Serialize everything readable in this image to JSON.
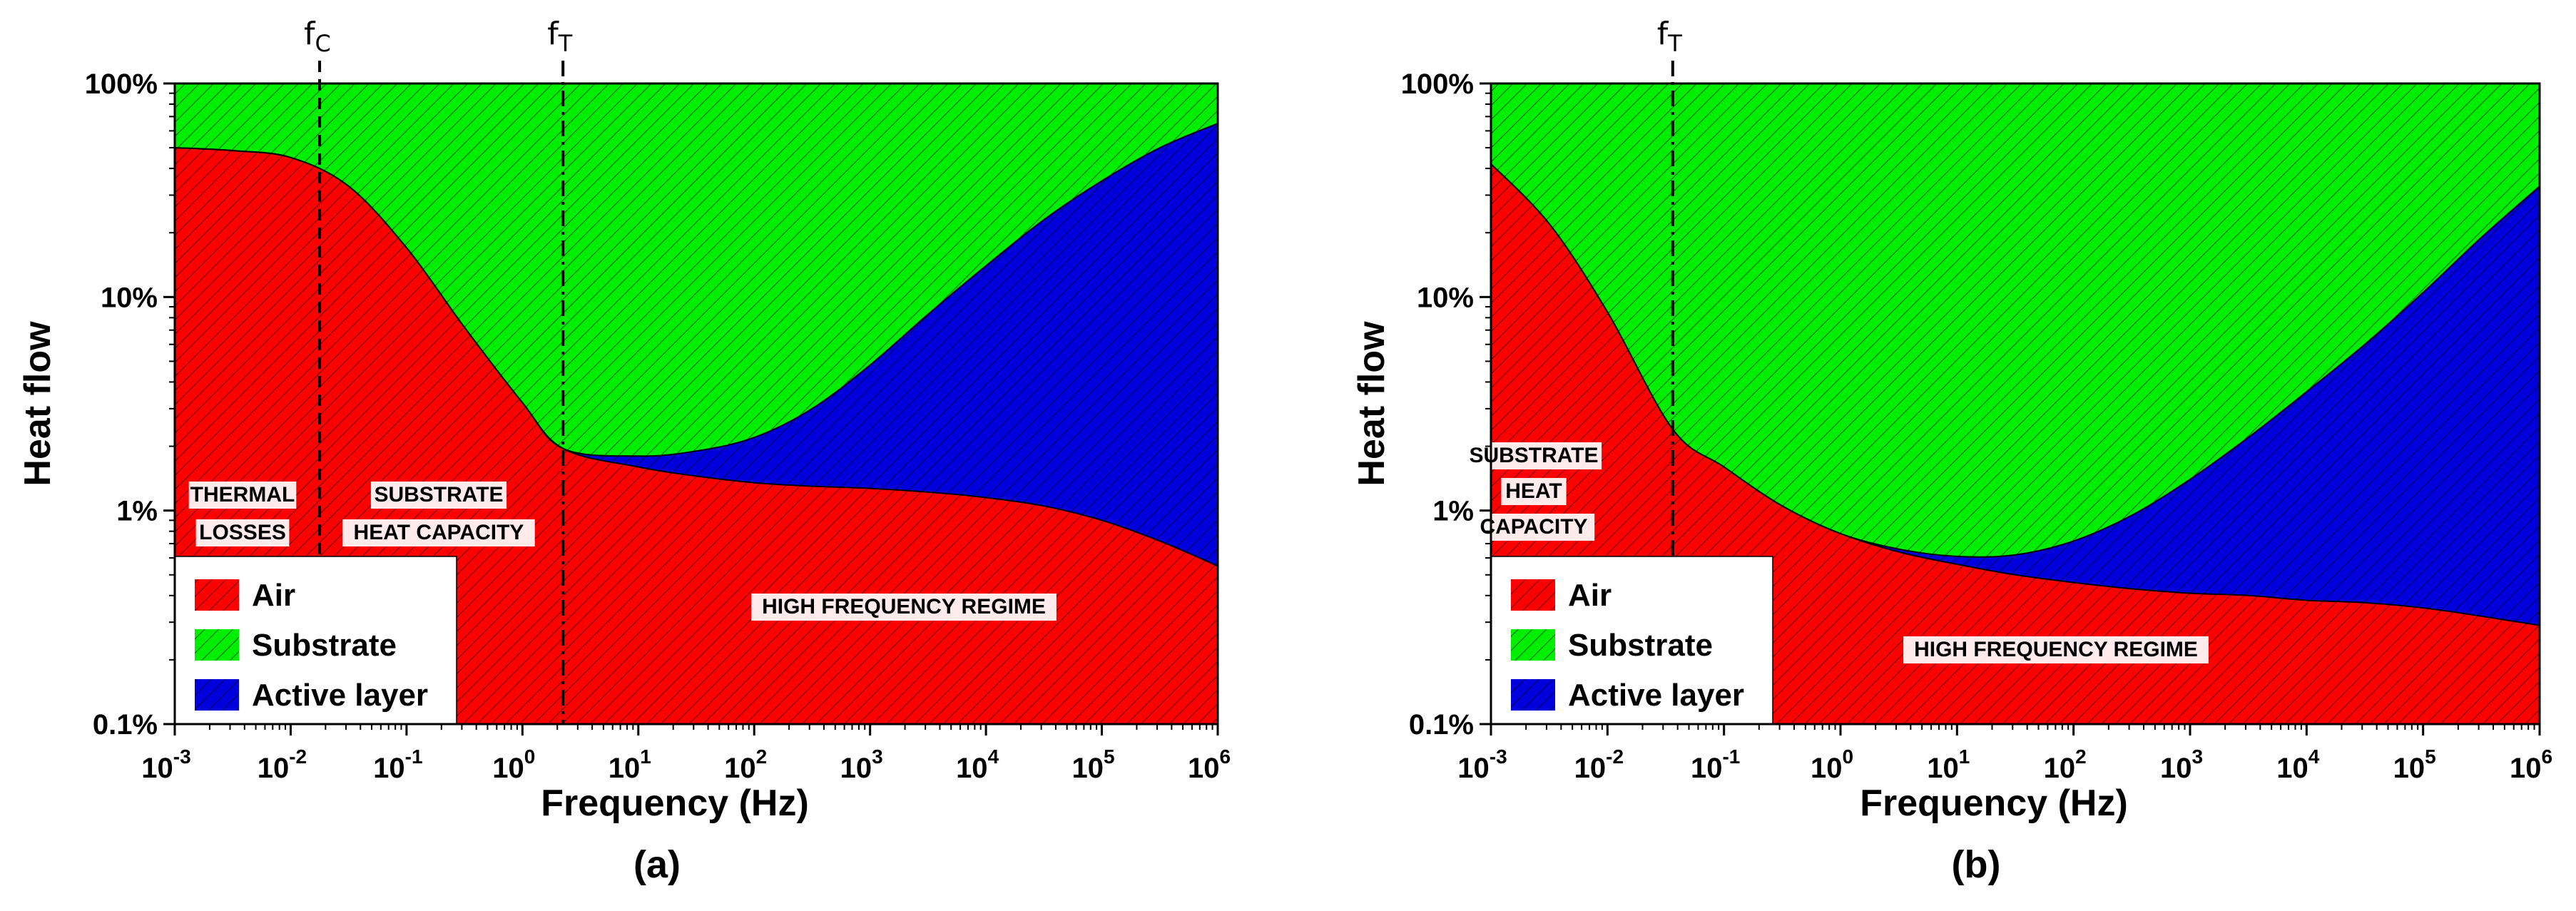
{
  "colors": {
    "air": "#ff0000",
    "substrate": "#00ee00",
    "active": "#0000dd",
    "hatch": "#000000"
  },
  "chart_data": [
    {
      "type": "area",
      "panel_label": "(a)",
      "xlabel": "Frequency (Hz)",
      "ylabel": "Heat flow",
      "xscale": "log",
      "yscale": "log",
      "xlim": [
        0.001,
        1000000
      ],
      "ylim": [
        0.1,
        100
      ],
      "x_ticks": [
        {
          "exp": -3,
          "base": "10",
          "sup": "-3"
        },
        {
          "exp": -2,
          "base": "10",
          "sup": "-2"
        },
        {
          "exp": -1,
          "base": "10",
          "sup": "-1"
        },
        {
          "exp": 0,
          "base": "10",
          "sup": "0"
        },
        {
          "exp": 1,
          "base": "10",
          "sup": "1"
        },
        {
          "exp": 2,
          "base": "10",
          "sup": "2"
        },
        {
          "exp": 3,
          "base": "10",
          "sup": "3"
        },
        {
          "exp": 4,
          "base": "10",
          "sup": "4"
        },
        {
          "exp": 5,
          "base": "10",
          "sup": "5"
        },
        {
          "exp": 6,
          "base": "10",
          "sup": "6"
        }
      ],
      "y_ticks": [
        {
          "value": 100,
          "label": "100%"
        },
        {
          "value": 10,
          "label": "10%"
        },
        {
          "value": 1,
          "label": "1%"
        },
        {
          "value": 0.1,
          "label": "0.1%"
        }
      ],
      "x_log": [
        -3,
        -2.5,
        -2,
        -1.5,
        -1,
        -0.5,
        0,
        0.35,
        1,
        1.5,
        2,
        2.5,
        3,
        3.5,
        4,
        4.5,
        5,
        5.5,
        6
      ],
      "series": [
        {
          "name": "Air",
          "key": "air",
          "upper": [
            50,
            48.5,
            45,
            33,
            17,
            7.2,
            3.2,
            1.95,
            1.6,
            1.45,
            1.35,
            1.3,
            1.27,
            1.22,
            1.15,
            1.05,
            0.9,
            0.72,
            0.55
          ]
        },
        {
          "name": "Active layer",
          "key": "active",
          "upper": [
            50,
            48.5,
            45,
            33,
            17,
            7.2,
            3.2,
            1.95,
            1.8,
            1.9,
            2.2,
            3.0,
            4.8,
            8.3,
            14,
            23,
            35,
            50,
            65
          ]
        },
        {
          "name": "Substrate",
          "key": "substrate",
          "upper_const": 100
        }
      ],
      "markers": [
        {
          "log_x": -1.75,
          "base": "f",
          "sub": "C",
          "style": "dashed"
        },
        {
          "log_x": 0.35,
          "base": "f",
          "sub": "T",
          "style": "dashdot"
        }
      ],
      "annotations": [
        {
          "lines": [
            "THERMAL",
            "LOSSES"
          ]
        },
        {
          "lines": [
            "SUBSTRATE",
            "HEAT CAPACITY"
          ]
        },
        {
          "lines": [
            "HIGH FREQUENCY REGIME"
          ]
        }
      ],
      "legend": {
        "placement": "bottom-left",
        "items": [
          {
            "label": "Air",
            "key": "air"
          },
          {
            "label": "Substrate",
            "key": "substrate"
          },
          {
            "label": "Active layer",
            "key": "active"
          }
        ]
      }
    },
    {
      "type": "area",
      "panel_label": "(b)",
      "xlabel": "Frequency (Hz)",
      "ylabel": "Heat flow",
      "xscale": "log",
      "yscale": "log",
      "xlim": [
        0.001,
        1000000
      ],
      "ylim": [
        0.1,
        100
      ],
      "x_ticks": [
        {
          "exp": -3,
          "base": "10",
          "sup": "-3"
        },
        {
          "exp": -2,
          "base": "10",
          "sup": "-2"
        },
        {
          "exp": -1,
          "base": "10",
          "sup": "-1"
        },
        {
          "exp": 0,
          "base": "10",
          "sup": "0"
        },
        {
          "exp": 1,
          "base": "10",
          "sup": "1"
        },
        {
          "exp": 2,
          "base": "10",
          "sup": "2"
        },
        {
          "exp": 3,
          "base": "10",
          "sup": "3"
        },
        {
          "exp": 4,
          "base": "10",
          "sup": "4"
        },
        {
          "exp": 5,
          "base": "10",
          "sup": "5"
        },
        {
          "exp": 6,
          "base": "10",
          "sup": "6"
        }
      ],
      "y_ticks": [
        {
          "value": 100,
          "label": "100%"
        },
        {
          "value": 10,
          "label": "10%"
        },
        {
          "value": 1,
          "label": "1%"
        },
        {
          "value": 0.1,
          "label": "0.1%"
        }
      ],
      "x_log": [
        -3,
        -2.5,
        -2,
        -1.44,
        -1,
        -0.5,
        0,
        0.5,
        1,
        1.5,
        2,
        2.5,
        3,
        3.5,
        4,
        4.5,
        5,
        5.5,
        6
      ],
      "series": [
        {
          "name": "Air",
          "key": "air",
          "upper": [
            42,
            22,
            8.5,
            2.4,
            1.6,
            1.05,
            0.78,
            0.64,
            0.56,
            0.5,
            0.46,
            0.43,
            0.41,
            0.4,
            0.38,
            0.37,
            0.35,
            0.32,
            0.29
          ]
        },
        {
          "name": "Active layer",
          "key": "active",
          "upper": [
            42,
            22,
            8.5,
            2.4,
            1.6,
            1.05,
            0.78,
            0.66,
            0.61,
            0.62,
            0.72,
            0.95,
            1.4,
            2.2,
            3.6,
            6.0,
            10.5,
            19,
            33
          ]
        },
        {
          "name": "Substrate",
          "key": "substrate",
          "upper_const": 100
        }
      ],
      "markers": [
        {
          "log_x": -1.44,
          "base": "f",
          "sub": "T",
          "style": "dashdot"
        }
      ],
      "annotations": [
        {
          "lines": [
            "SUBSTRATE",
            "HEAT",
            "CAPACITY"
          ]
        },
        {
          "lines": [
            "HIGH FREQUENCY REGIME"
          ]
        }
      ],
      "legend": {
        "placement": "bottom-left",
        "items": [
          {
            "label": "Air",
            "key": "air"
          },
          {
            "label": "Substrate",
            "key": "substrate"
          },
          {
            "label": "Active layer",
            "key": "active"
          }
        ]
      }
    }
  ]
}
